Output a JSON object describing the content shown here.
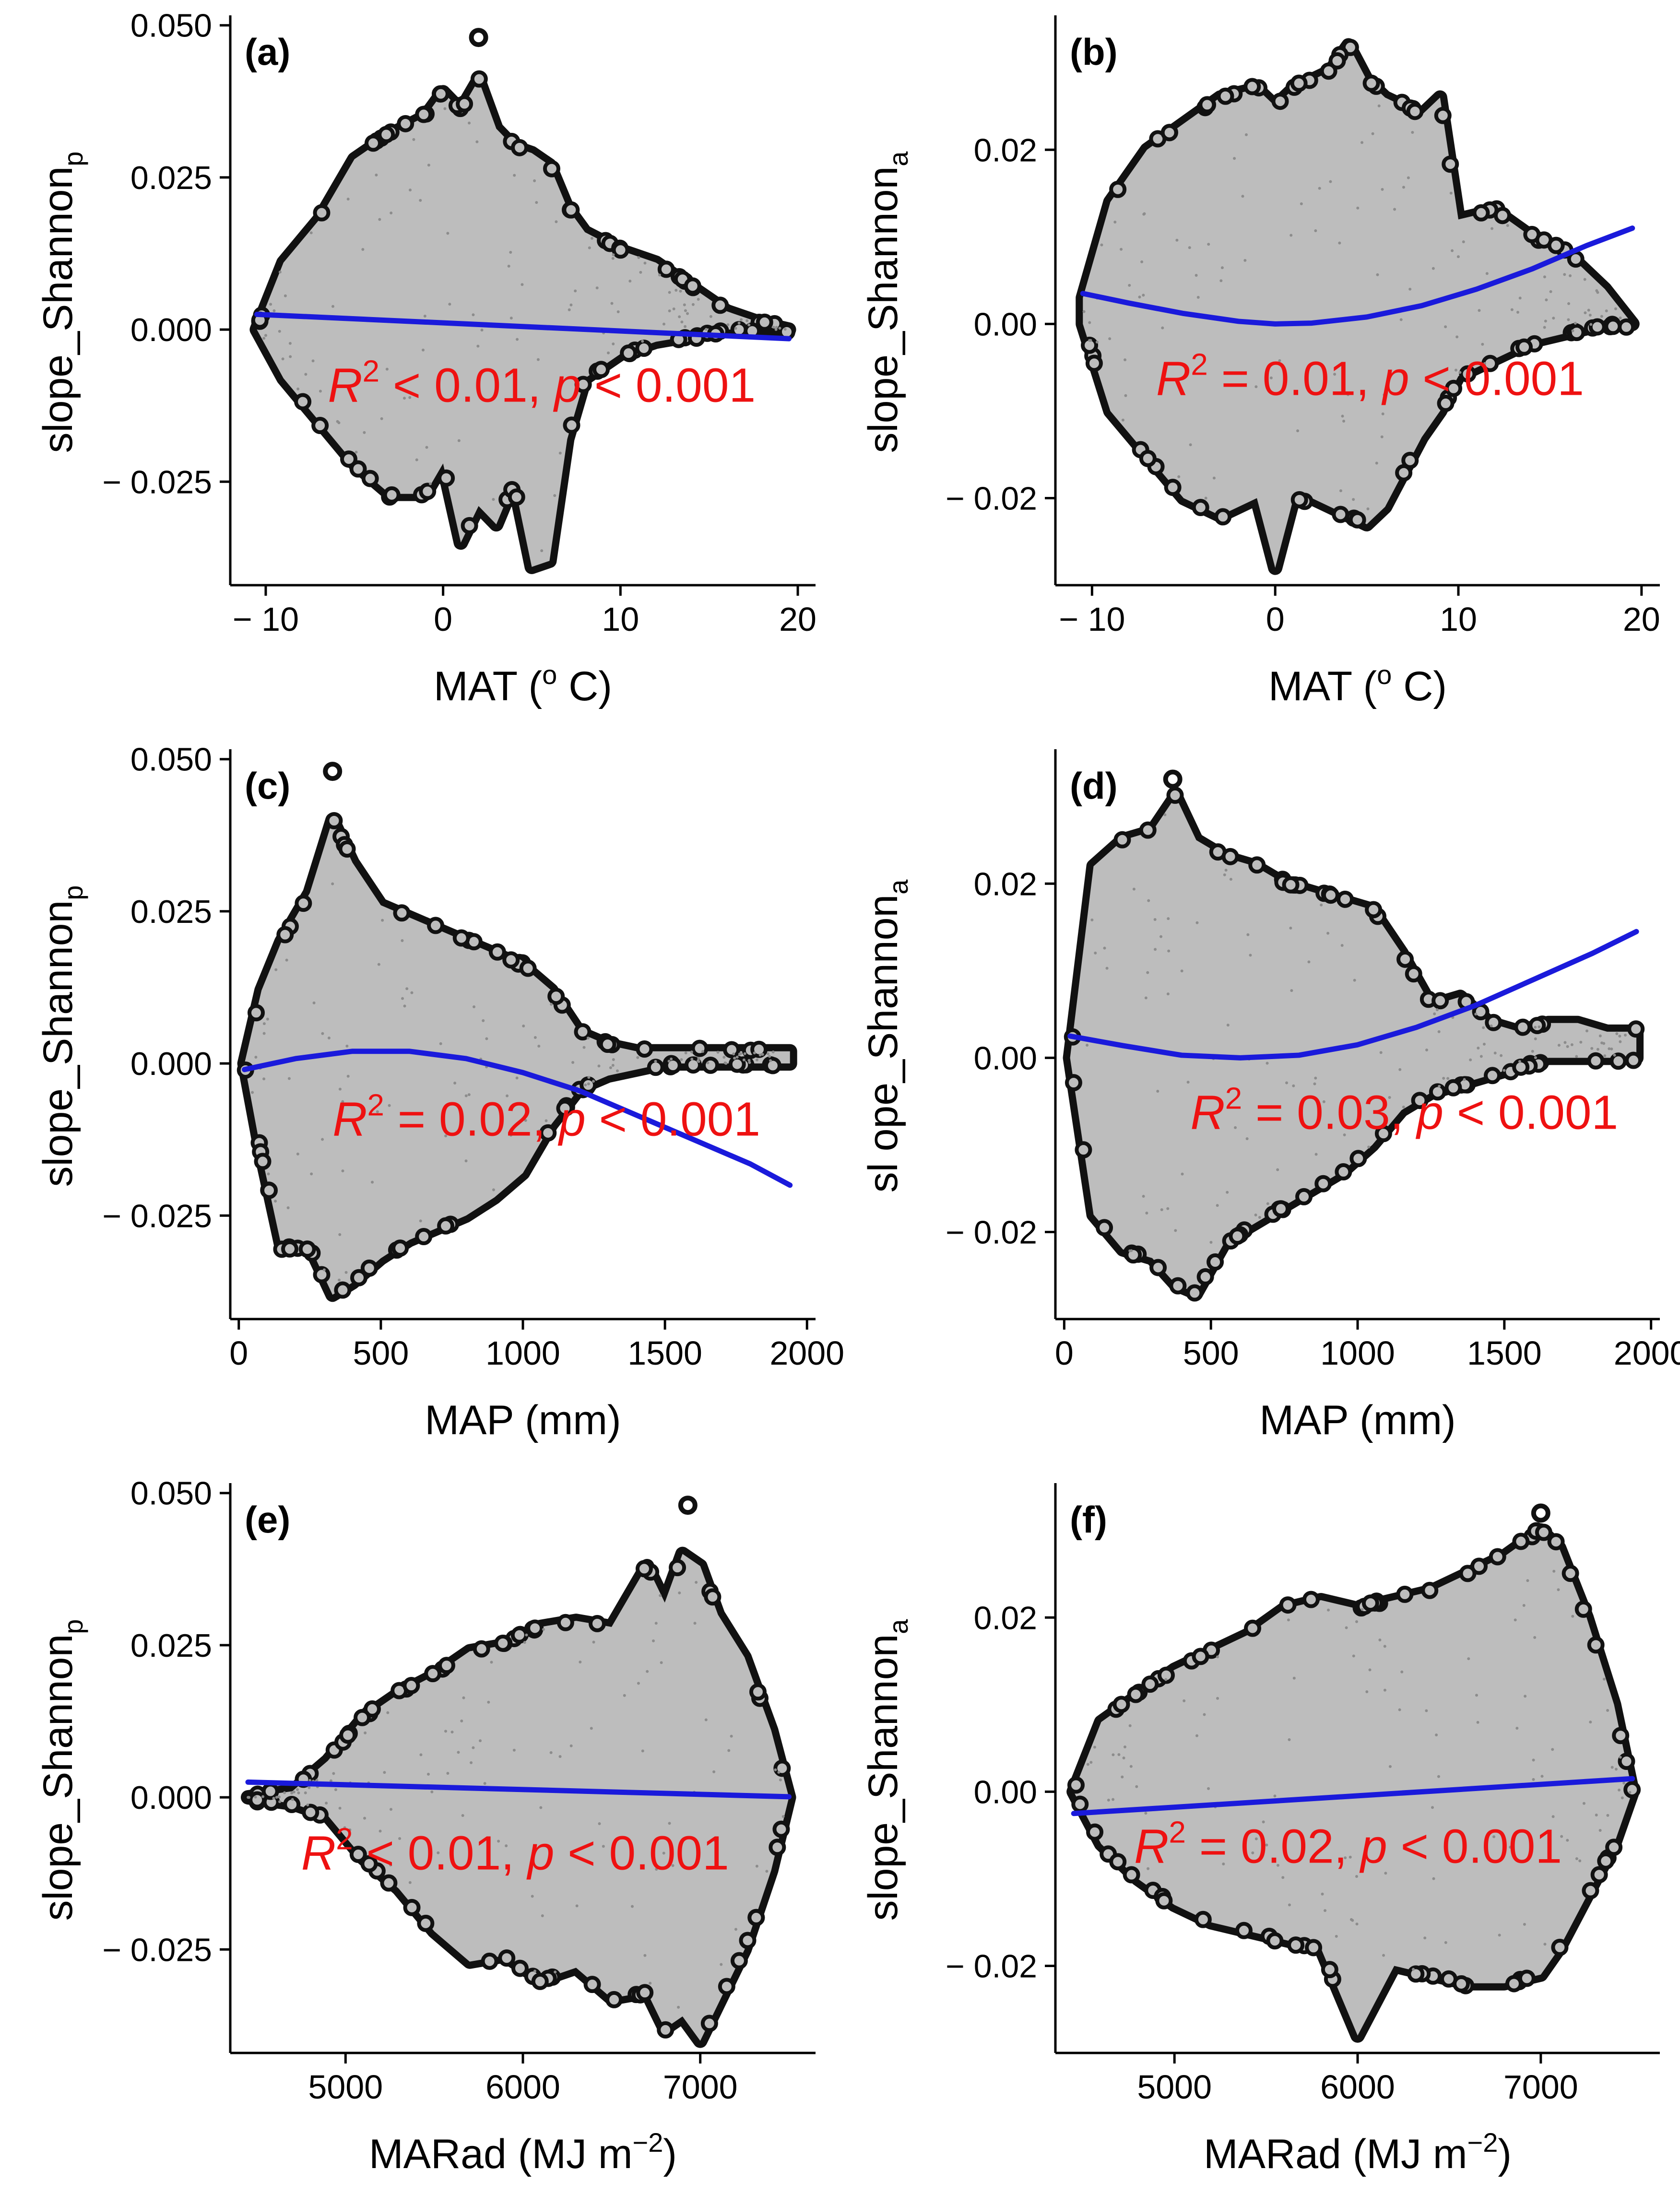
{
  "colors": {
    "point_fill": "#bdbdbd",
    "point_edge": "#111111",
    "fit_line": "#1a1adb",
    "annotation": "#ee1111",
    "axis": "#000000"
  },
  "chart_data": [
    {
      "type": "scatter",
      "panel_label": "(a)",
      "xlabel": "MAT (° C)",
      "xlabel_main": "MAT (",
      "xlabel_sup": "o",
      "xlabel_rest": " C)",
      "ylabel_main": "slope_Shannon",
      "ylabel_sub": "p",
      "xlim": [
        -12,
        21
      ],
      "ylim": [
        -0.042,
        0.051
      ],
      "x_ticks": [
        -10,
        0,
        10,
        20
      ],
      "x_tick_labels": [
        "− 10",
        "0",
        "10",
        "20"
      ],
      "y_ticks": [
        0.05,
        0.025,
        0.0,
        -0.025
      ],
      "y_tick_labels": [
        "0.050",
        "0.025",
        "0.000",
        "− 0.025"
      ],
      "cloud_x": [
        -10.5,
        -9,
        -7,
        -5,
        -3,
        -1,
        0,
        1,
        2,
        3,
        4,
        5,
        6,
        7,
        8,
        10,
        12,
        14,
        16,
        18,
        19.5
      ],
      "cloud_upper": [
        0.0,
        0.011,
        0.018,
        0.028,
        0.032,
        0.035,
        0.039,
        0.036,
        0.041,
        0.033,
        0.03,
        0.029,
        0.027,
        0.02,
        0.016,
        0.013,
        0.011,
        0.007,
        0.003,
        0.001,
        0.0
      ],
      "cloud_lower": [
        0.0,
        -0.008,
        -0.015,
        -0.022,
        -0.027,
        -0.027,
        -0.022,
        -0.035,
        -0.029,
        -0.032,
        -0.025,
        -0.039,
        -0.038,
        -0.018,
        -0.008,
        -0.004,
        -0.002,
        -0.001,
        0.0,
        0.0,
        0.0
      ],
      "outliers": [
        {
          "x": 2,
          "y": 0.048
        }
      ],
      "fit_x": [
        -10.5,
        19.5
      ],
      "fit_y": [
        0.0025,
        -0.0015
      ],
      "annotation": {
        "r": "R",
        "sup": "2",
        "mid": " < 0.01, ",
        "p": "p",
        "end": " < 0.001",
        "x": -6.5,
        "y": -0.0095
      }
    },
    {
      "type": "scatter",
      "panel_label": "(b)",
      "xlabel": "MAT (° C)",
      "xlabel_main": "MAT (",
      "xlabel_sup": "o",
      "xlabel_rest": " C)",
      "ylabel_main": "slope_Shannon",
      "ylabel_sub": "a",
      "xlim": [
        -12,
        21
      ],
      "ylim": [
        -0.03,
        0.035
      ],
      "x_ticks": [
        -10,
        0,
        10,
        20
      ],
      "x_tick_labels": [
        "− 10",
        "0",
        "10",
        "20"
      ],
      "y_ticks": [
        0.02,
        0.0,
        -0.02
      ],
      "y_tick_labels": [
        "0.02",
        "0.00",
        "− 0.02"
      ],
      "cloud_x": [
        -10.5,
        -9,
        -7,
        -5,
        -3,
        -1,
        0,
        1,
        2,
        3,
        4,
        5,
        6,
        7,
        8,
        9,
        10,
        12,
        14,
        16,
        18,
        19.5
      ],
      "cloud_upper": [
        0.003,
        0.014,
        0.02,
        0.023,
        0.026,
        0.027,
        0.025,
        0.027,
        0.028,
        0.029,
        0.032,
        0.028,
        0.026,
        0.025,
        0.024,
        0.026,
        0.012,
        0.013,
        0.01,
        0.008,
        0.004,
        0.0
      ],
      "cloud_lower": [
        0.0,
        -0.01,
        -0.015,
        -0.02,
        -0.022,
        -0.02,
        -0.028,
        -0.02,
        -0.02,
        -0.021,
        -0.022,
        -0.023,
        -0.021,
        -0.017,
        -0.013,
        -0.01,
        -0.006,
        -0.004,
        -0.002,
        -0.001,
        0.0,
        0.0
      ],
      "outliers": [],
      "fit_x": [
        -10.5,
        -8,
        -5,
        -2,
        0,
        2,
        5,
        8,
        11,
        14,
        17,
        19.5
      ],
      "fit_y": [
        0.0035,
        0.0024,
        0.0012,
        0.0003,
        0.0,
        0.0001,
        0.0008,
        0.0021,
        0.004,
        0.0063,
        0.009,
        0.011
      ],
      "annotation": {
        "r": "R",
        "sup": "2",
        "mid": " = 0.01, ",
        "p": "p",
        "end": " < 0.001",
        "x": -6.5,
        "y": -0.0065
      }
    },
    {
      "type": "scatter",
      "panel_label": "(c)",
      "xlabel": "MAP (mm)",
      "xlabel_main": "MAP (mm)",
      "xlabel_sup": "",
      "xlabel_rest": "",
      "ylabel_main": "slope_Shannon",
      "ylabel_sub": "p",
      "xlim": [
        -30,
        2030
      ],
      "ylim": [
        -0.042,
        0.051
      ],
      "x_ticks": [
        0,
        500,
        1000,
        1500,
        2000
      ],
      "x_tick_labels": [
        "0",
        "500",
        "1000",
        "1500",
        "2000"
      ],
      "y_ticks": [
        0.05,
        0.025,
        0.0,
        -0.025
      ],
      "y_tick_labels": [
        "0.050",
        "0.025",
        "0.000",
        "− 0.025"
      ],
      "cloud_x": [
        20,
        80,
        150,
        250,
        330,
        400,
        500,
        600,
        700,
        800,
        900,
        1000,
        1100,
        1200,
        1300,
        1400,
        1500,
        1600,
        1700,
        1800,
        1940
      ],
      "cloud_upper": [
        0.0,
        0.012,
        0.02,
        0.028,
        0.04,
        0.033,
        0.026,
        0.024,
        0.022,
        0.02,
        0.018,
        0.016,
        0.012,
        0.005,
        0.003,
        0.002,
        0.002,
        0.002,
        0.002,
        0.002,
        0.002
      ],
      "cloud_lower": [
        0.0,
        -0.015,
        -0.03,
        -0.03,
        -0.038,
        -0.036,
        -0.032,
        -0.029,
        -0.027,
        -0.025,
        -0.022,
        -0.018,
        -0.01,
        -0.004,
        -0.002,
        -0.001,
        0.0,
        0.0,
        0.0,
        0.0,
        0.0
      ],
      "outliers": [
        {
          "x": 330,
          "y": 0.048
        }
      ],
      "fit_x": [
        20,
        200,
        400,
        600,
        800,
        1000,
        1200,
        1400,
        1600,
        1800,
        1940
      ],
      "fit_y": [
        -0.001,
        0.0008,
        0.002,
        0.002,
        0.0008,
        -0.0015,
        -0.0045,
        -0.0085,
        -0.0125,
        -0.0165,
        -0.02
      ],
      "annotation": {
        "r": "R",
        "sup": "2",
        "mid": " = 0.02, ",
        "p": "p",
        "end": " < 0.001",
        "x": 330,
        "y": -0.0095
      }
    },
    {
      "type": "scatter",
      "panel_label": "(d)",
      "xlabel": "MAP (mm)",
      "xlabel_main": "MAP (mm)",
      "xlabel_sup": "",
      "xlabel_rest": "",
      "ylabel_main": "sl ope_Shannon",
      "ylabel_sub": "a",
      "xlim": [
        -30,
        2030
      ],
      "ylim": [
        -0.03,
        0.035
      ],
      "x_ticks": [
        0,
        500,
        1000,
        1500,
        2000
      ],
      "x_tick_labels": [
        "0",
        "500",
        "1000",
        "1500",
        "2000"
      ],
      "y_ticks": [
        0.02,
        0.0,
        -0.02
      ],
      "y_tick_labels": [
        "0.02",
        "0.00",
        "− 0.02"
      ],
      "cloud_x": [
        20,
        100,
        200,
        300,
        380,
        450,
        550,
        650,
        750,
        850,
        950,
        1050,
        1150,
        1250,
        1350,
        1450,
        1550,
        1650,
        1750,
        1850,
        1950
      ],
      "cloud_upper": [
        0.0,
        0.022,
        0.025,
        0.026,
        0.03,
        0.025,
        0.023,
        0.022,
        0.02,
        0.019,
        0.018,
        0.017,
        0.012,
        0.006,
        0.007,
        0.004,
        0.003,
        0.004,
        0.004,
        0.003,
        0.003
      ],
      "cloud_lower": [
        0.0,
        -0.018,
        -0.022,
        -0.023,
        -0.026,
        -0.027,
        -0.021,
        -0.019,
        -0.017,
        -0.015,
        -0.013,
        -0.01,
        -0.006,
        -0.004,
        -0.003,
        -0.002,
        -0.001,
        0.0,
        0.0,
        0.0,
        0.0
      ],
      "outliers": [
        {
          "x": 370,
          "y": 0.032
        }
      ],
      "fit_x": [
        20,
        200,
        400,
        600,
        800,
        1000,
        1200,
        1400,
        1600,
        1800,
        1950
      ],
      "fit_y": [
        0.0025,
        0.0014,
        0.0003,
        0.0,
        0.0003,
        0.0015,
        0.0035,
        0.006,
        0.009,
        0.012,
        0.0145
      ],
      "annotation": {
        "r": "R",
        "sup": "2",
        "mid": " = 0.03, ",
        "p": "p",
        "end": " < 0.001",
        "x": 430,
        "y": -0.0065
      }
    },
    {
      "type": "scatter",
      "panel_label": "(e)",
      "xlabel": "MARad (MJ m−2)",
      "xlabel_main": "MARad (MJ m",
      "xlabel_sup": "−2",
      "xlabel_rest": ")",
      "ylabel_main": "slope_Shannon",
      "ylabel_sub": "p",
      "xlim": [
        4350,
        7650
      ],
      "ylim": [
        -0.042,
        0.051
      ],
      "x_ticks": [
        5000,
        6000,
        7000
      ],
      "x_tick_labels": [
        "5000",
        "6000",
        "7000"
      ],
      "y_ticks": [
        0.05,
        0.025,
        0.0,
        -0.025
      ],
      "y_tick_labels": [
        "0.050",
        "0.025",
        "0.000",
        "− 0.025"
      ],
      "cloud_x": [
        4450,
        4700,
        4900,
        5100,
        5300,
        5500,
        5700,
        5900,
        6100,
        6300,
        6500,
        6700,
        6800,
        6900,
        7000,
        7100,
        7250,
        7400,
        7500
      ],
      "cloud_upper": [
        0.0,
        0.001,
        0.006,
        0.013,
        0.017,
        0.02,
        0.024,
        0.025,
        0.028,
        0.029,
        0.028,
        0.038,
        0.032,
        0.04,
        0.038,
        0.03,
        0.023,
        0.011,
        0.0
      ],
      "cloud_lower": [
        0.0,
        -0.001,
        -0.003,
        -0.01,
        -0.015,
        -0.022,
        -0.027,
        -0.026,
        -0.03,
        -0.028,
        -0.033,
        -0.032,
        -0.038,
        -0.036,
        -0.04,
        -0.034,
        -0.025,
        -0.012,
        0.0
      ],
      "outliers": [
        {
          "x": 6930,
          "y": 0.048
        }
      ],
      "fit_x": [
        4450,
        7500
      ],
      "fit_y": [
        0.0025,
        0.0001
      ],
      "annotation": {
        "r": "R",
        "sup": "2",
        "mid": " < 0.01, ",
        "p": "p",
        "end": " < 0.001",
        "x": 4750,
        "y": -0.0095
      }
    },
    {
      "type": "scatter",
      "panel_label": "(f)",
      "xlabel": "MARad (MJ m−2)",
      "xlabel_main": "MARad (MJ m",
      "xlabel_sup": "−2",
      "xlabel_rest": ")",
      "ylabel_main": "slope_Shannon",
      "ylabel_sub": "a",
      "xlim": [
        4350,
        7650
      ],
      "ylim": [
        -0.03,
        0.035
      ],
      "x_ticks": [
        5000,
        6000,
        7000
      ],
      "x_tick_labels": [
        "5000",
        "6000",
        "7000"
      ],
      "y_ticks": [
        0.02,
        0.0,
        -0.02
      ],
      "y_tick_labels": [
        "0.02",
        "0.00",
        "− 0.02"
      ],
      "cloud_x": [
        4450,
        4600,
        4800,
        5000,
        5200,
        5400,
        5600,
        5800,
        6000,
        6200,
        6400,
        6600,
        6800,
        7000,
        7100,
        7250,
        7400,
        7500
      ],
      "cloud_upper": [
        0.0,
        0.008,
        0.011,
        0.014,
        0.016,
        0.018,
        0.021,
        0.022,
        0.021,
        0.022,
        0.023,
        0.025,
        0.027,
        0.03,
        0.028,
        0.02,
        0.01,
        0.0
      ],
      "cloud_lower": [
        0.0,
        -0.006,
        -0.01,
        -0.013,
        -0.015,
        -0.016,
        -0.017,
        -0.018,
        -0.028,
        -0.02,
        -0.021,
        -0.022,
        -0.022,
        -0.021,
        -0.018,
        -0.012,
        -0.006,
        0.0
      ],
      "outliers": [
        {
          "x": 7000,
          "y": 0.032
        }
      ],
      "fit_x": [
        4450,
        7500
      ],
      "fit_y": [
        -0.0025,
        0.0015
      ],
      "annotation": {
        "r": "R",
        "sup": "2",
        "mid": " = 0.02, ",
        "p": "p",
        "end": " < 0.001",
        "x": 4780,
        "y": -0.0065
      }
    }
  ]
}
